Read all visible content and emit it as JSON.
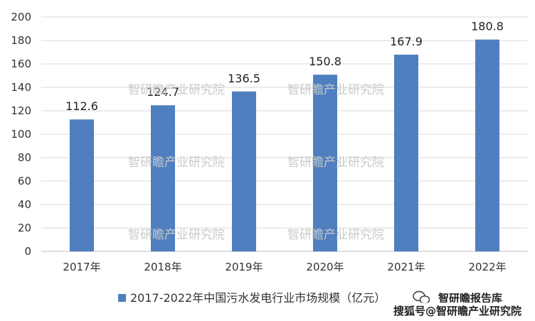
{
  "chart_data": {
    "type": "bar",
    "categories": [
      "2017年",
      "2018年",
      "2019年",
      "2020年",
      "2021年",
      "2022年"
    ],
    "series": [
      {
        "name": "2017-2022年中国污水发电行业市场规模（亿元）",
        "values": [
          112.6,
          124.7,
          136.5,
          150.8,
          167.9,
          180.8
        ]
      }
    ],
    "value_labels": [
      "112.6",
      "124.7",
      "136.5",
      "150.8",
      "167.9",
      "180.8"
    ],
    "ylim": [
      0,
      200
    ],
    "yticks": [
      "0",
      "20",
      "40",
      "60",
      "80",
      "100",
      "120",
      "140",
      "160",
      "180",
      "200"
    ],
    "grid": true,
    "legend_position": "bottom",
    "colors": {
      "bar": "#4f7fbf",
      "grid": "#d9d9d9",
      "axis": "#bfbfbf"
    }
  },
  "watermark": "智研瞻产业研究院",
  "footer": {
    "wechat_account": "智研瞻报告库",
    "sohu_source": "搜狐号@智研瞻产业研究院"
  }
}
